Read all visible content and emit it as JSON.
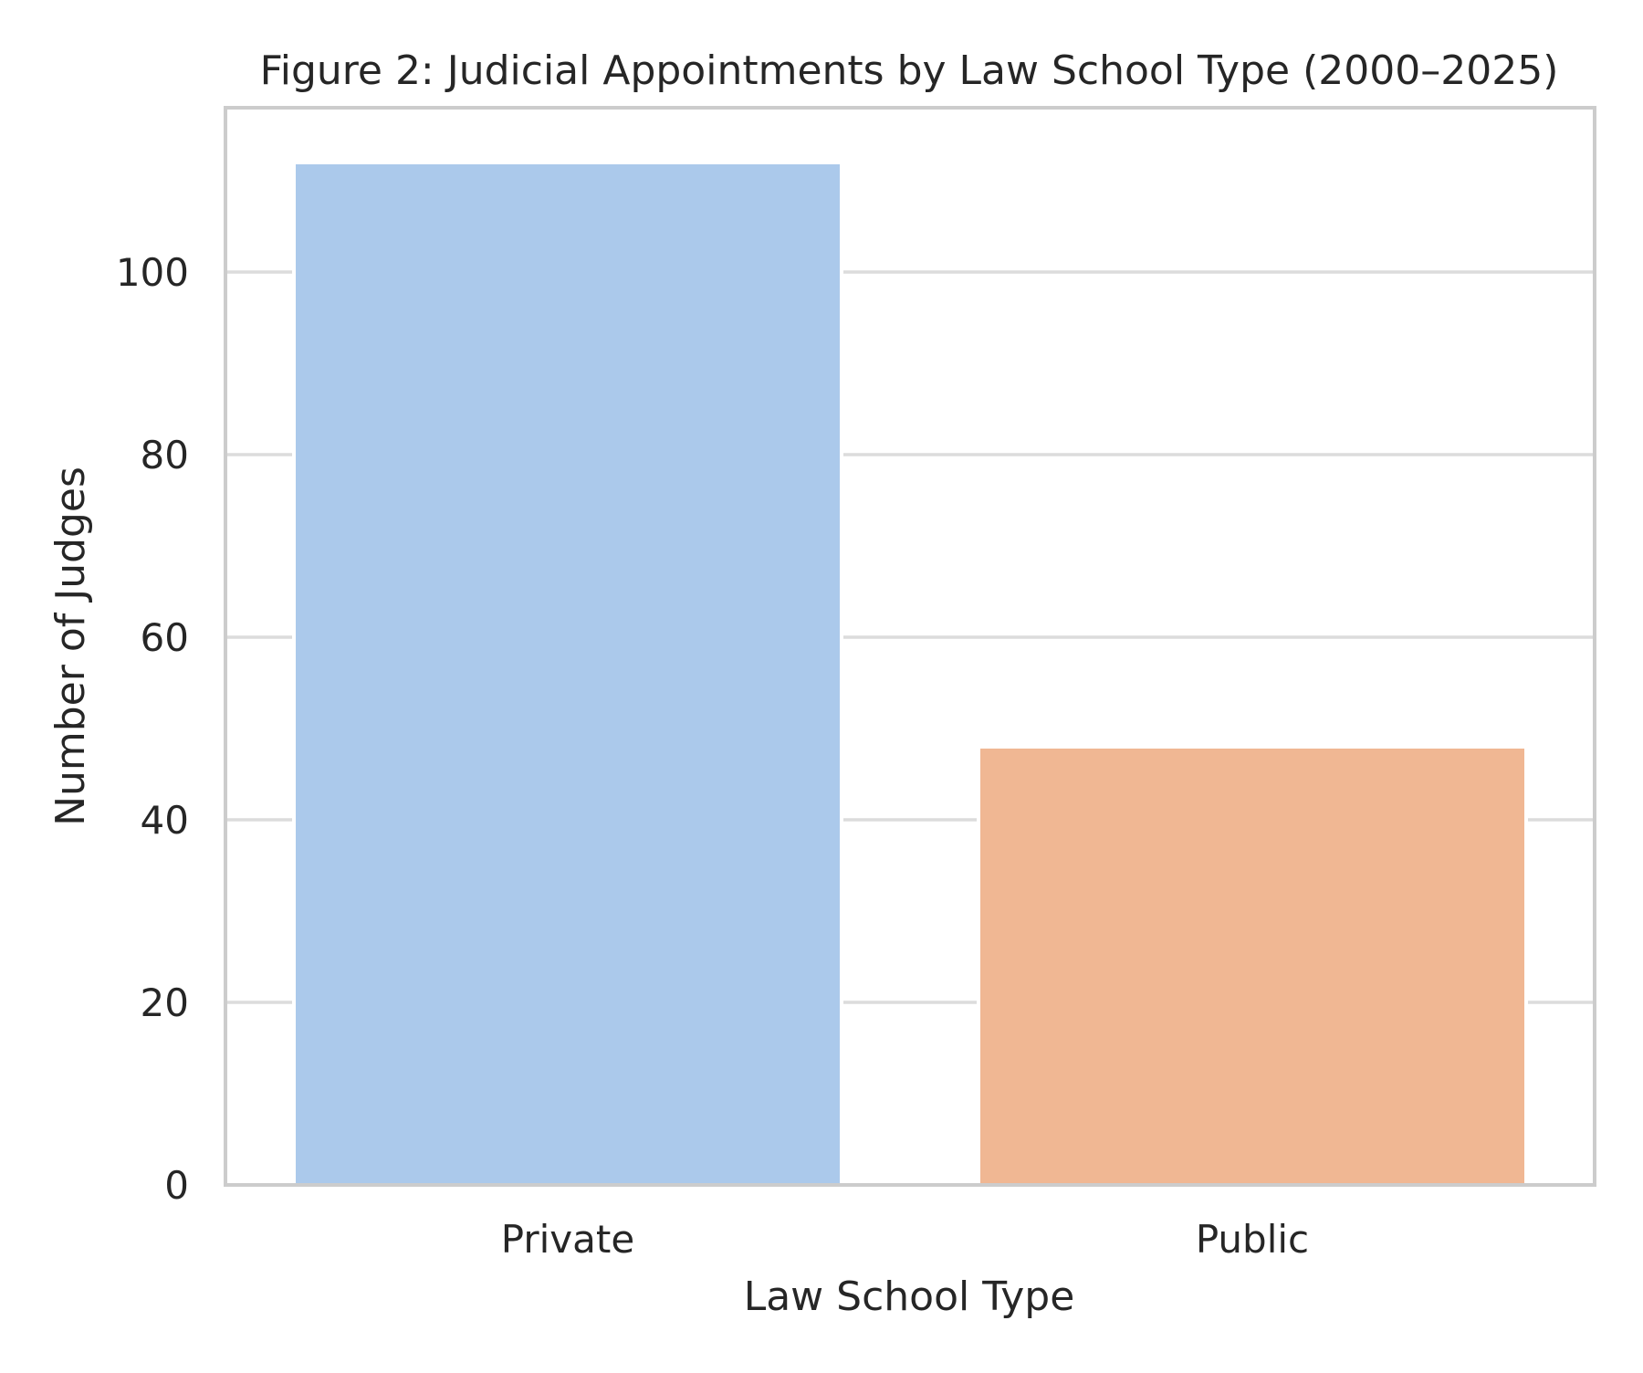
{
  "chart_data": {
    "type": "bar",
    "title": "Figure 2: Judicial Appointments by Law School Type (2000–2025)",
    "xlabel": "Law School Type",
    "ylabel": "Number of Judges",
    "categories": [
      "Private",
      "Public"
    ],
    "values": [
      112,
      48
    ],
    "ylim": [
      0,
      118
    ],
    "yticks": [
      0,
      20,
      40,
      60,
      80,
      100
    ],
    "ytick_labels": [
      "0",
      "20",
      "40",
      "60",
      "80",
      "100"
    ],
    "grid": true,
    "colors": {
      "bars": [
        "#abc9eb",
        "#f0b793"
      ],
      "grid": "#dcdcdc",
      "frame": "#cccccc",
      "text": "#262626",
      "background": "#ffffff"
    }
  }
}
